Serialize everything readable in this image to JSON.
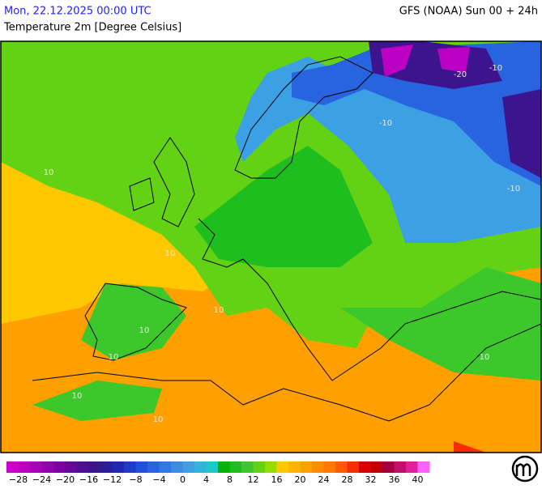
{
  "header": {
    "date": "Mon, 22.12.2025 00:00 UTC",
    "model": "GFS (NOAA) Sun 00 + 24h",
    "subtitle": "Temperature 2m [Degree Celsius]"
  },
  "map": {
    "contour_labels": [
      "10",
      "10",
      "10",
      "10",
      "10",
      "10",
      "10",
      "10",
      "-10",
      "-10",
      "-10",
      "-20"
    ]
  },
  "legend": {
    "colors": [
      "#cc00cc",
      "#bb00c4",
      "#a800bb",
      "#9200b0",
      "#7c00a6",
      "#66089c",
      "#500e96",
      "#3c148e",
      "#2a1c9c",
      "#1e28b4",
      "#1e3cc8",
      "#2050dc",
      "#2864e0",
      "#3278e4",
      "#3c8ce6",
      "#3ca0e4",
      "#30b4dc",
      "#1ec8c8",
      "#00b400",
      "#1ebe1e",
      "#3cc82a",
      "#64d214",
      "#96dc00",
      "#ffc800",
      "#ffb400",
      "#ffa000",
      "#ff8c00",
      "#ff7800",
      "#ff5a00",
      "#f03000",
      "#d80000",
      "#c00000",
      "#a00040",
      "#c0106e",
      "#e0209a",
      "#ff60ff"
    ],
    "labels": [
      "−28",
      "−24",
      "−20",
      "−16",
      "−12",
      "−8",
      "−4",
      "0",
      "4",
      "8",
      "12",
      "16",
      "20",
      "24",
      "28",
      "32",
      "36",
      "40"
    ]
  }
}
